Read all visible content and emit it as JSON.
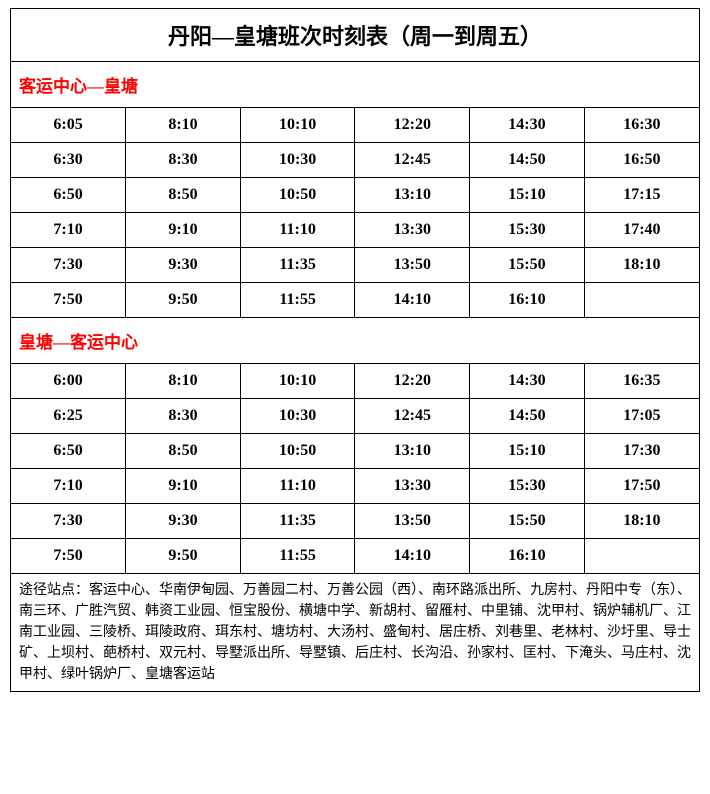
{
  "title": "丹阳—皇塘班次时刻表（周一到周五）",
  "section1": {
    "header": "客运中心—皇塘",
    "rows": [
      [
        "6:05",
        "8:10",
        "10:10",
        "12:20",
        "14:30",
        "16:30"
      ],
      [
        "6:30",
        "8:30",
        "10:30",
        "12:45",
        "14:50",
        "16:50"
      ],
      [
        "6:50",
        "8:50",
        "10:50",
        "13:10",
        "15:10",
        "17:15"
      ],
      [
        "7:10",
        "9:10",
        "11:10",
        "13:30",
        "15:30",
        "17:40"
      ],
      [
        "7:30",
        "9:30",
        "11:35",
        "13:50",
        "15:50",
        "18:10"
      ],
      [
        "7:50",
        "9:50",
        "11:55",
        "14:10",
        "16:10",
        ""
      ]
    ]
  },
  "section2": {
    "header": "皇塘—客运中心",
    "rows": [
      [
        "6:00",
        "8:10",
        "10:10",
        "12:20",
        "14:30",
        "16:35"
      ],
      [
        "6:25",
        "8:30",
        "10:30",
        "12:45",
        "14:50",
        "17:05"
      ],
      [
        "6:50",
        "8:50",
        "10:50",
        "13:10",
        "15:10",
        "17:30"
      ],
      [
        "7:10",
        "9:10",
        "11:10",
        "13:30",
        "15:30",
        "17:50"
      ],
      [
        "7:30",
        "9:30",
        "11:35",
        "13:50",
        "15:50",
        "18:10"
      ],
      [
        "7:50",
        "9:50",
        "11:55",
        "14:10",
        "16:10",
        ""
      ]
    ]
  },
  "footer": "途径站点：客运中心、华南伊甸园、万善园二村、万善公园（西）、南环路派出所、九房村、丹阳中专（东）、南三环、广胜汽贸、韩资工业园、恒宝股份、横塘中学、新胡村、留雁村、中里铺、沈甲村、锅炉辅机厂、江南工业园、三陵桥、珥陵政府、珥东村、塘坊村、大汤村、盛甸村、居庄桥、刘巷里、老林村、沙圩里、导士矿、上坝村、葩桥村、双元村、导墅派出所、导墅镇、后庄村、长沟沿、孙家村、匡村、下淹头、马庄村、沈甲村、绿叶锅炉厂、皇塘客运站",
  "colors": {
    "header_text": "#ff0000",
    "border": "#000000",
    "text": "#000000",
    "background": "#ffffff"
  },
  "fonts": {
    "title_size": 22,
    "section_header_size": 17,
    "cell_size": 16,
    "footer_size": 14
  }
}
